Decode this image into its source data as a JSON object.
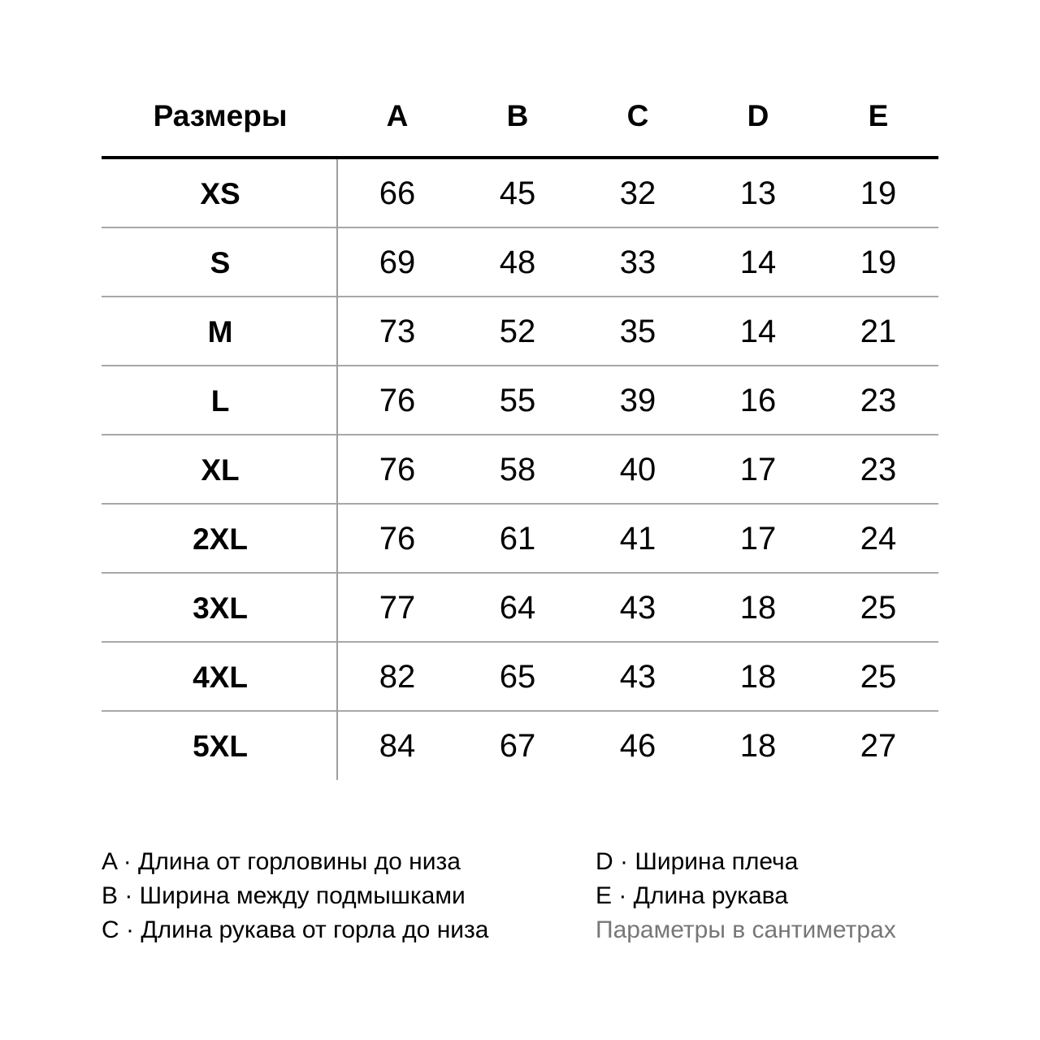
{
  "table": {
    "headers": [
      "Размеры",
      "A",
      "B",
      "C",
      "D",
      "E"
    ],
    "rows": [
      {
        "size": "XS",
        "values": [
          "66",
          "45",
          "32",
          "13",
          "19"
        ]
      },
      {
        "size": "S",
        "values": [
          "69",
          "48",
          "33",
          "14",
          "19"
        ]
      },
      {
        "size": "M",
        "values": [
          "73",
          "52",
          "35",
          "14",
          "21"
        ]
      },
      {
        "size": "L",
        "values": [
          "76",
          "55",
          "39",
          "16",
          "23"
        ]
      },
      {
        "size": "XL",
        "values": [
          "76",
          "58",
          "40",
          "17",
          "23"
        ]
      },
      {
        "size": "2XL",
        "values": [
          "76",
          "61",
          "41",
          "17",
          "24"
        ]
      },
      {
        "size": "3XL",
        "values": [
          "77",
          "64",
          "43",
          "18",
          "25"
        ]
      },
      {
        "size": "4XL",
        "values": [
          "82",
          "65",
          "43",
          "18",
          "25"
        ]
      },
      {
        "size": "5XL",
        "values": [
          "84",
          "67",
          "46",
          "18",
          "27"
        ]
      }
    ]
  },
  "legend": {
    "left": [
      "A · Длина от горловины до низа",
      "B · Ширина между подмышками",
      "C · Длина рукава от горла до низа"
    ],
    "right": [
      "D · Ширина плеча",
      "E · Длина рукава"
    ],
    "note": "Параметры в сантиметрах"
  },
  "colors": {
    "text": "#000000",
    "grid": "#a8a8a8",
    "note": "#777777"
  }
}
